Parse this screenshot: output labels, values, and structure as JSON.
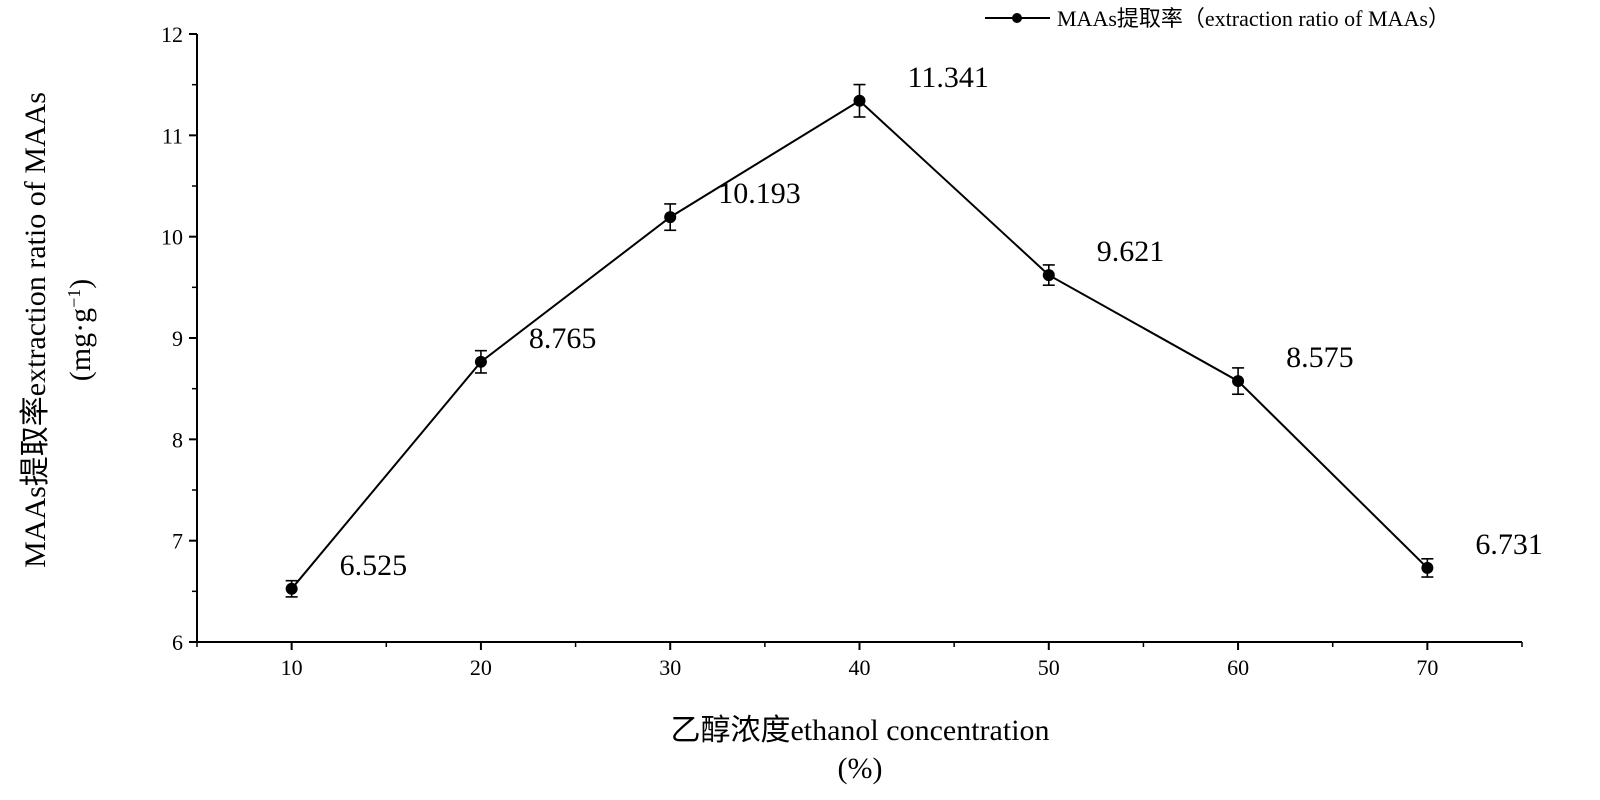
{
  "chart_data": {
    "type": "line",
    "title": "",
    "xlabel": "乙醇浓度ethanol concentration",
    "xlabel_unit": "(%)",
    "ylabel": "MAAs提取率extraction ratio of MAAs",
    "ylabel_unit_prefix": "(mg·g",
    "ylabel_unit_sup": "−1",
    "ylabel_unit_suffix": ")",
    "x": [
      10,
      20,
      30,
      40,
      50,
      60,
      70
    ],
    "xlim": [
      5,
      75
    ],
    "ylim": [
      6,
      12
    ],
    "x_ticks": [
      10,
      20,
      30,
      40,
      50,
      60,
      70
    ],
    "y_ticks": [
      6,
      7,
      8,
      9,
      10,
      11,
      12
    ],
    "grid": false,
    "legend_position": "top-right",
    "series": [
      {
        "name": "MAAs提取率（extraction ratio of MAAs）",
        "values": [
          6.525,
          8.765,
          10.193,
          11.341,
          9.621,
          8.575,
          6.731
        ],
        "labels": [
          "6.525",
          "8.765",
          "10.193",
          "11.341",
          "9.621",
          "8.575",
          "6.731"
        ],
        "errors": [
          0.08,
          0.11,
          0.13,
          0.16,
          0.1,
          0.13,
          0.09
        ],
        "color": "#000000"
      }
    ]
  }
}
